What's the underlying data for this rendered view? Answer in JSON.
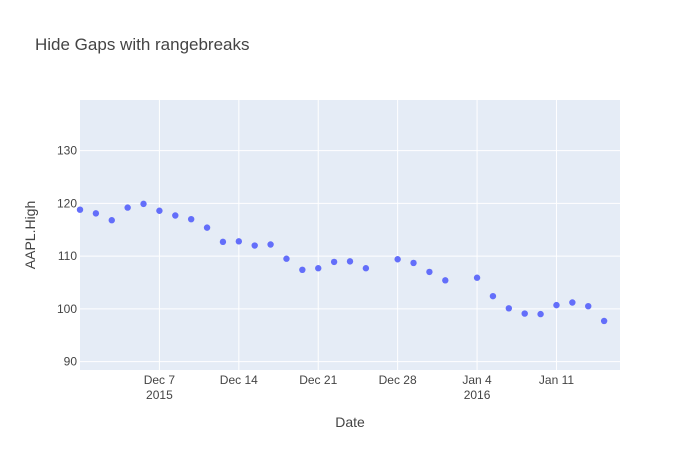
{
  "chart_data": {
    "type": "scatter",
    "title": "Hide Gaps with rangebreaks",
    "xlabel": "Date",
    "ylabel": "AAPL.High",
    "x_range": [
      "2015-11-30",
      "2016-01-15"
    ],
    "rangebreaks": "weekends hidden",
    "ylim": [
      88.4,
      139.6
    ],
    "y_ticks": [
      90,
      100,
      110,
      120,
      130
    ],
    "x_ticks": [
      {
        "date": "2015-12-07",
        "label": "Dec 7",
        "sublabel": "2015"
      },
      {
        "date": "2015-12-14",
        "label": "Dec 14",
        "sublabel": ""
      },
      {
        "date": "2015-12-21",
        "label": "Dec 21",
        "sublabel": ""
      },
      {
        "date": "2015-12-28",
        "label": "Dec 28",
        "sublabel": ""
      },
      {
        "date": "2016-01-04",
        "label": "Jan 4",
        "sublabel": "2016"
      },
      {
        "date": "2016-01-11",
        "label": "Jan 11",
        "sublabel": ""
      }
    ],
    "grid": true,
    "marker_color": "#636efa",
    "plot_bg": "#e5ecf6",
    "points": [
      {
        "x": "2015-11-30",
        "y": 118.8
      },
      {
        "x": "2015-12-01",
        "y": 118.1
      },
      {
        "x": "2015-12-02",
        "y": 116.8
      },
      {
        "x": "2015-12-03",
        "y": 119.2
      },
      {
        "x": "2015-12-04",
        "y": 119.9
      },
      {
        "x": "2015-12-07",
        "y": 118.6
      },
      {
        "x": "2015-12-08",
        "y": 117.7
      },
      {
        "x": "2015-12-09",
        "y": 117.0
      },
      {
        "x": "2015-12-10",
        "y": 115.4
      },
      {
        "x": "2015-12-11",
        "y": 112.7
      },
      {
        "x": "2015-12-14",
        "y": 112.8
      },
      {
        "x": "2015-12-15",
        "y": 112.0
      },
      {
        "x": "2015-12-16",
        "y": 112.2
      },
      {
        "x": "2015-12-17",
        "y": 109.5
      },
      {
        "x": "2015-12-18",
        "y": 107.4
      },
      {
        "x": "2015-12-21",
        "y": 107.7
      },
      {
        "x": "2015-12-22",
        "y": 108.9
      },
      {
        "x": "2015-12-23",
        "y": 109.0
      },
      {
        "x": "2015-12-24",
        "y": 107.7
      },
      {
        "x": "2015-12-28",
        "y": 109.4
      },
      {
        "x": "2015-12-29",
        "y": 108.7
      },
      {
        "x": "2015-12-30",
        "y": 107.0
      },
      {
        "x": "2015-12-31",
        "y": 105.4
      },
      {
        "x": "2016-01-04",
        "y": 105.9
      },
      {
        "x": "2016-01-05",
        "y": 102.4
      },
      {
        "x": "2016-01-06",
        "y": 100.1
      },
      {
        "x": "2016-01-07",
        "y": 99.1
      },
      {
        "x": "2016-01-08",
        "y": 99.0
      },
      {
        "x": "2016-01-11",
        "y": 100.7
      },
      {
        "x": "2016-01-12",
        "y": 101.2
      },
      {
        "x": "2016-01-13",
        "y": 100.5
      },
      {
        "x": "2016-01-14",
        "y": 97.7
      }
    ]
  }
}
